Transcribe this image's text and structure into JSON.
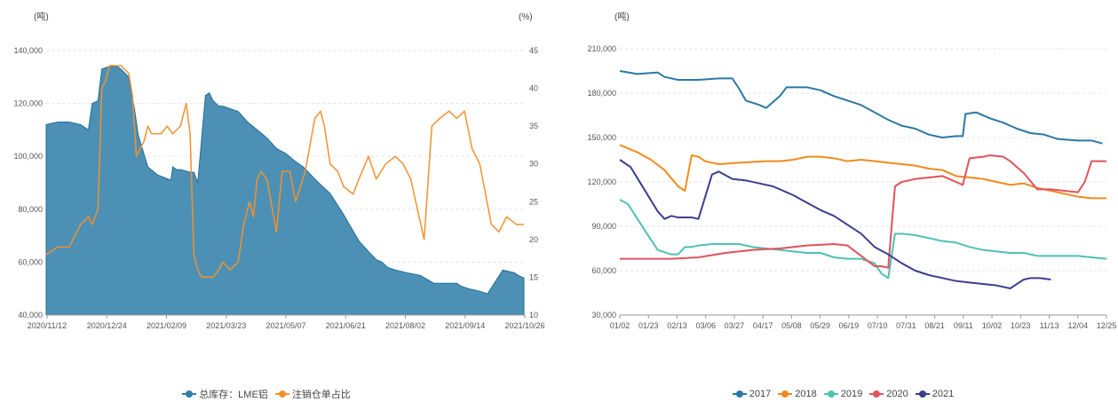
{
  "chart_data": [
    {
      "type": "area",
      "title": "",
      "y_unit_left": "(吨)",
      "y_unit_right": "(%)",
      "ylim_left": [
        40000,
        140000
      ],
      "ylim_right": [
        10,
        45
      ],
      "yticks_left": [
        "140,000",
        "120,000",
        "100,000",
        "80,000",
        "60,000",
        "40,000"
      ],
      "yticks_right": [
        "45",
        "40",
        "35",
        "30",
        "25",
        "20",
        "15",
        "10"
      ],
      "xticks": [
        "2020/11/12",
        "2020/12/24",
        "2021/02/09",
        "2021/03/23",
        "2021/05/07",
        "2021/06/21",
        "2021/08/02",
        "2021/09/14",
        "2021/10/26"
      ],
      "grid": true,
      "legend_position": "bottom",
      "series": [
        {
          "name": "总库存：LME铝",
          "axis": "left",
          "color": "#2e7da8",
          "x": [
            0,
            6,
            12,
            18,
            22,
            24,
            27,
            29,
            33,
            37,
            39,
            43,
            44,
            46,
            48,
            53,
            58,
            65,
            66,
            68,
            70,
            75,
            77,
            79,
            83,
            85,
            87,
            90,
            92,
            96,
            100,
            105,
            110,
            115,
            120,
            125,
            130,
            134,
            138,
            142,
            148,
            155,
            163,
            168,
            172,
            175,
            178,
            182,
            188,
            195,
            202,
            209,
            214,
            216,
            220,
            226,
            230,
            238,
            244,
            246,
            249
          ],
          "y": [
            112000,
            113000,
            113000,
            112000,
            110000,
            120000,
            121000,
            133000,
            134000,
            134000,
            133000,
            130000,
            126000,
            118000,
            108000,
            96000,
            93000,
            91000,
            96000,
            95000,
            95000,
            94000,
            94000,
            90000,
            123000,
            124000,
            121000,
            119000,
            119000,
            118000,
            117000,
            113000,
            110000,
            107000,
            103000,
            101000,
            98000,
            96000,
            93000,
            90000,
            86000,
            78000,
            68000,
            64000,
            61000,
            60000,
            58000,
            57000,
            56000,
            55000,
            52000,
            52000,
            52000,
            51000,
            50000,
            49000,
            48000,
            57000,
            56000,
            55000,
            54000
          ]
        },
        {
          "name": "注销仓单占比",
          "axis": "right",
          "color": "#f0922e",
          "x": [
            0,
            6,
            12,
            18,
            22,
            24,
            27,
            29,
            31,
            33,
            37,
            39,
            43,
            45,
            47,
            51,
            53,
            55,
            58,
            60,
            63,
            66,
            70,
            73,
            75,
            77,
            79,
            81,
            83,
            85,
            87,
            90,
            92,
            96,
            100,
            103,
            106,
            108,
            110,
            112,
            115,
            120,
            123,
            127,
            130,
            135,
            140,
            143,
            145,
            148,
            152,
            155,
            160,
            163,
            168,
            172,
            177,
            182,
            186,
            190,
            197,
            201,
            205,
            210,
            214,
            218,
            222,
            226,
            232,
            236,
            240,
            245,
            249
          ],
          "y": [
            18,
            19,
            19,
            22,
            23,
            22,
            24,
            40,
            41,
            43,
            43,
            43,
            42,
            39,
            31,
            33,
            35,
            34,
            34,
            34,
            35,
            34,
            35,
            38,
            34,
            18,
            16,
            15,
            15,
            15,
            15,
            16,
            17,
            16,
            17,
            22,
            25,
            23,
            28,
            29,
            28,
            21,
            29,
            29,
            25,
            29,
            36,
            37,
            35,
            30,
            29,
            27,
            26,
            28,
            31,
            28,
            30,
            31,
            30,
            28,
            20,
            35,
            36,
            37,
            36,
            37,
            32,
            30,
            22,
            21,
            23,
            22,
            22
          ]
        }
      ]
    },
    {
      "type": "line",
      "title": "",
      "y_unit": "(吨)",
      "ylim": [
        30000,
        210000
      ],
      "yticks": [
        "210,000",
        "180,000",
        "150,000",
        "120,000",
        "90,000",
        "60,000",
        "30,000"
      ],
      "xticks": [
        "01/02",
        "01/23",
        "02/13",
        "03/06",
        "03/27",
        "04/17",
        "05/08",
        "05/29",
        "06/19",
        "07/10",
        "07/31",
        "08/21",
        "09/11",
        "10/02",
        "10/23",
        "11/13",
        "12/04",
        "12/25"
      ],
      "x_range": [
        2,
        361
      ],
      "grid": true,
      "legend_position": "bottom",
      "series": [
        {
          "name": "2017",
          "color": "#2b78a5",
          "x": [
            2,
            15,
            30,
            35,
            45,
            60,
            75,
            85,
            90,
            95,
            105,
            110,
            120,
            125,
            140,
            150,
            160,
            170,
            180,
            190,
            200,
            210,
            220,
            230,
            240,
            250,
            255,
            257,
            265,
            275,
            285,
            295,
            305,
            315,
            325,
            340,
            350,
            358
          ],
          "y": [
            195000,
            193000,
            194000,
            191000,
            189000,
            189000,
            190000,
            190000,
            183000,
            175000,
            172000,
            170000,
            178000,
            184000,
            184000,
            182000,
            178000,
            175000,
            172000,
            167000,
            162000,
            158000,
            156000,
            152000,
            150000,
            151000,
            151000,
            166000,
            167000,
            163000,
            160000,
            156000,
            153000,
            152000,
            149000,
            148000,
            148000,
            146000
          ]
        },
        {
          "name": "2018",
          "color": "#f08a1c",
          "x": [
            2,
            15,
            25,
            35,
            45,
            50,
            55,
            60,
            65,
            75,
            90,
            110,
            120,
            130,
            140,
            150,
            160,
            170,
            180,
            190,
            200,
            210,
            220,
            230,
            240,
            250,
            260,
            270,
            280,
            290,
            300,
            310,
            320,
            330,
            340,
            350,
            361
          ],
          "y": [
            145000,
            140000,
            135000,
            128000,
            117000,
            114000,
            138000,
            137000,
            134000,
            132000,
            133000,
            134000,
            134000,
            135000,
            137000,
            137000,
            136000,
            134000,
            135000,
            134000,
            133000,
            132000,
            131000,
            129000,
            128000,
            124000,
            123000,
            122000,
            120000,
            118000,
            119000,
            116000,
            114000,
            112000,
            110000,
            109000,
            109000
          ]
        },
        {
          "name": "2019",
          "color": "#4fc0b3",
          "x": [
            2,
            8,
            15,
            22,
            30,
            40,
            45,
            50,
            55,
            60,
            70,
            90,
            100,
            110,
            120,
            130,
            140,
            150,
            160,
            170,
            180,
            190,
            195,
            200,
            205,
            210,
            220,
            230,
            240,
            250,
            260,
            270,
            280,
            290,
            300,
            310,
            320,
            330,
            340,
            350,
            361
          ],
          "y": [
            108000,
            105000,
            95000,
            85000,
            74000,
            71000,
            71000,
            76000,
            76000,
            77000,
            78000,
            78000,
            76000,
            75000,
            74000,
            73000,
            72000,
            72000,
            69000,
            68000,
            68000,
            65000,
            58000,
            55000,
            85000,
            85000,
            84000,
            82000,
            80000,
            79000,
            76000,
            74000,
            73000,
            72000,
            72000,
            70000,
            70000,
            70000,
            70000,
            69000,
            68000
          ]
        },
        {
          "name": "2020",
          "color": "#e0535c",
          "x": [
            2,
            20,
            40,
            60,
            80,
            100,
            120,
            140,
            160,
            170,
            180,
            190,
            195,
            200,
            205,
            210,
            220,
            230,
            240,
            250,
            255,
            260,
            270,
            275,
            285,
            290,
            295,
            300,
            310,
            320,
            330,
            340,
            345,
            350,
            361
          ],
          "y": [
            68000,
            68000,
            68000,
            69000,
            72000,
            74000,
            75000,
            77000,
            78000,
            77000,
            70000,
            63000,
            63000,
            62000,
            117000,
            120000,
            122000,
            123000,
            124000,
            120000,
            118000,
            136000,
            137000,
            138000,
            137000,
            134000,
            130000,
            126000,
            115000,
            115000,
            114000,
            113000,
            120000,
            134000,
            134000
          ]
        },
        {
          "name": "2021",
          "color": "#3b3f8e",
          "x": [
            2,
            10,
            20,
            30,
            35,
            40,
            45,
            55,
            60,
            70,
            75,
            85,
            95,
            105,
            115,
            130,
            140,
            150,
            160,
            170,
            180,
            190,
            200,
            210,
            220,
            230,
            240,
            250,
            260,
            270,
            280,
            290,
            300,
            305,
            312,
            320
          ],
          "y": [
            135000,
            130000,
            115000,
            100000,
            95000,
            97000,
            96000,
            96000,
            95000,
            125000,
            127000,
            122000,
            121000,
            119000,
            117000,
            111000,
            106000,
            101000,
            97000,
            91000,
            85000,
            76000,
            71000,
            65000,
            60000,
            57000,
            55000,
            53000,
            52000,
            51000,
            50000,
            48000,
            54000,
            55000,
            55000,
            54000
          ]
        }
      ]
    }
  ]
}
